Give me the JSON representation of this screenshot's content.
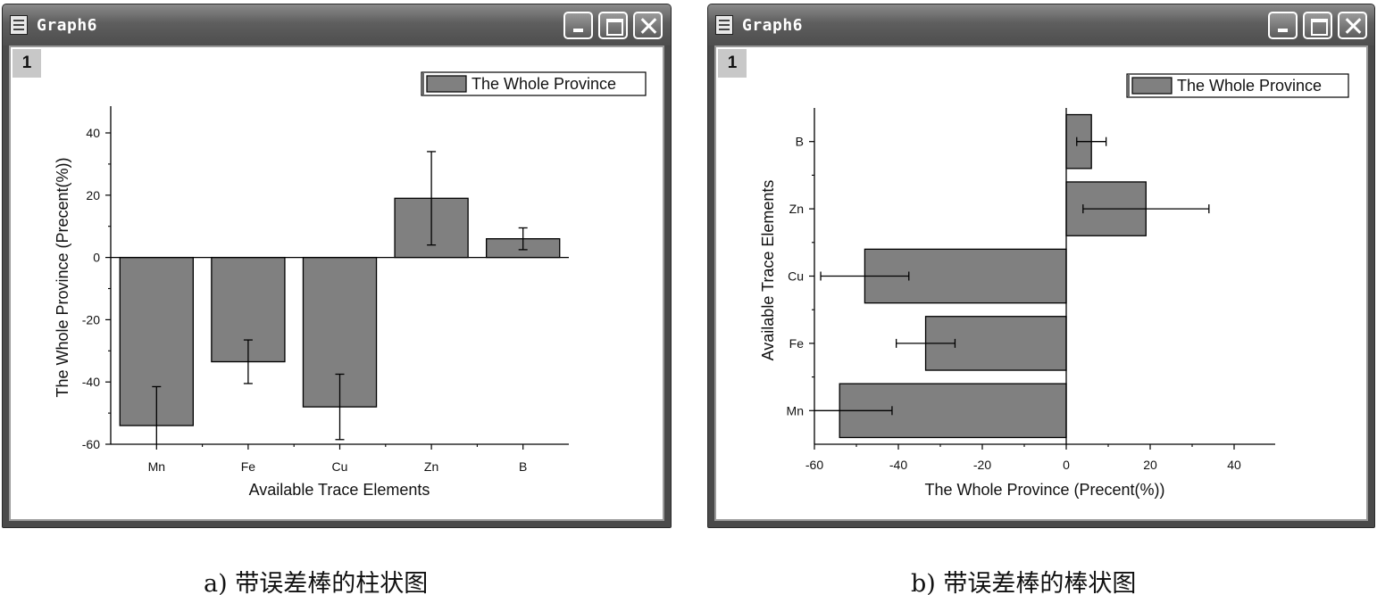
{
  "windows": [
    {
      "title": "Graph6",
      "layer": "1",
      "caption": "a) 带误差棒的柱状图",
      "chart_data": {
        "type": "bar",
        "orientation": "vertical",
        "categories": [
          "Mn",
          "Fe",
          "Cu",
          "Zn",
          "B"
        ],
        "series": [
          {
            "name": "The Whole Province",
            "values": [
              -54,
              -33.5,
              -48,
              19,
              6
            ],
            "errors": [
              12.5,
              7,
              10.5,
              15,
              3.5
            ]
          }
        ],
        "xlabel": "Available Trace Elements",
        "ylabel": "The Whole Province (Precent(%))",
        "ylim": [
          -60,
          50
        ],
        "yticks": [
          -60,
          -40,
          -20,
          0,
          20,
          40
        ],
        "legend": "top-right",
        "bar_color": "#808080"
      }
    },
    {
      "title": "Graph6",
      "layer": "1",
      "caption": "b) 带误差棒的棒状图",
      "chart_data": {
        "type": "bar",
        "orientation": "horizontal",
        "categories": [
          "Mn",
          "Fe",
          "Cu",
          "Zn",
          "B"
        ],
        "series": [
          {
            "name": "The Whole Province",
            "values": [
              -54,
              -33.5,
              -48,
              19,
              6
            ],
            "errors": [
              12.5,
              7,
              10.5,
              15,
              3.5
            ]
          }
        ],
        "xlabel": "The Whole Province (Precent(%))",
        "ylabel": "Available Trace Elements",
        "xlim": [
          -60,
          50
        ],
        "xticks": [
          -60,
          -40,
          -20,
          0,
          20,
          40
        ],
        "legend": "top-right",
        "bar_color": "#808080"
      }
    }
  ]
}
